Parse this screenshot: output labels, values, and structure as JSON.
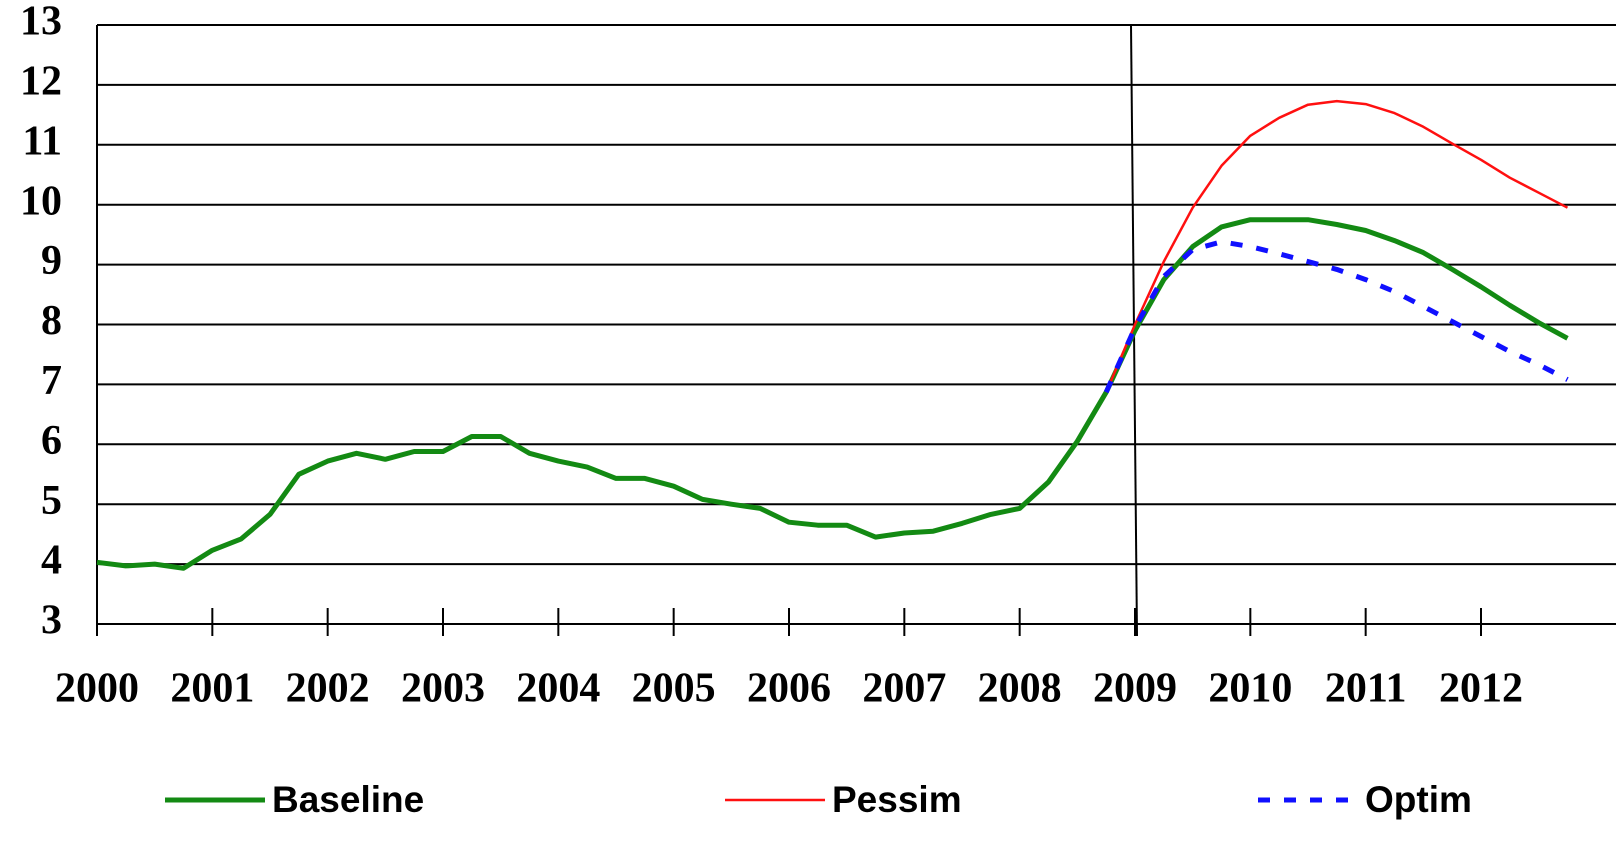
{
  "chart_data": {
    "type": "line",
    "x": [
      2000,
      2000.25,
      2000.5,
      2000.75,
      2001,
      2001.25,
      2001.5,
      2001.75,
      2002,
      2002.25,
      2002.5,
      2002.75,
      2003,
      2003.25,
      2003.5,
      2003.75,
      2004,
      2004.25,
      2004.5,
      2004.75,
      2005,
      2005.25,
      2005.5,
      2005.75,
      2006,
      2006.25,
      2006.5,
      2006.75,
      2007,
      2007.25,
      2007.5,
      2007.75,
      2008,
      2008.25,
      2008.5,
      2008.75,
      2009,
      2009.25,
      2009.5,
      2009.75,
      2010,
      2010.25,
      2010.5,
      2010.75,
      2011,
      2011.25,
      2011.5,
      2011.75,
      2012,
      2012.25,
      2012.5,
      2012.75
    ],
    "series": [
      {
        "name": "Baseline",
        "color": "#138a13",
        "width": 5,
        "dash": false,
        "values": [
          4.03,
          3.97,
          4.0,
          3.93,
          4.23,
          4.42,
          4.83,
          5.5,
          5.72,
          5.85,
          5.75,
          5.88,
          5.88,
          6.13,
          6.13,
          5.85,
          5.72,
          5.62,
          5.43,
          5.43,
          5.3,
          5.08,
          5.0,
          4.93,
          4.7,
          4.65,
          4.65,
          4.45,
          4.52,
          4.55,
          4.68,
          4.83,
          4.93,
          5.37,
          6.05,
          6.87,
          7.9,
          8.75,
          9.3,
          9.63,
          9.75,
          9.75,
          9.75,
          9.67,
          9.57,
          9.4,
          9.2,
          8.92,
          8.63,
          8.32,
          8.03,
          7.77
        ]
      },
      {
        "name": "Pessim",
        "color": "#ff1010",
        "width": 2.5,
        "dash": false,
        "values": [
          null,
          null,
          null,
          null,
          null,
          null,
          null,
          null,
          null,
          null,
          null,
          null,
          null,
          null,
          null,
          null,
          null,
          null,
          null,
          null,
          null,
          null,
          null,
          null,
          null,
          null,
          null,
          null,
          null,
          null,
          null,
          null,
          null,
          null,
          null,
          6.87,
          8.0,
          9.05,
          9.95,
          10.65,
          11.15,
          11.45,
          11.67,
          11.73,
          11.68,
          11.53,
          11.3,
          11.02,
          10.75,
          10.45,
          10.2,
          9.95
        ]
      },
      {
        "name": "Optim",
        "color": "#1010ff",
        "width": 5,
        "dash": true,
        "values": [
          null,
          null,
          null,
          null,
          null,
          null,
          null,
          null,
          null,
          null,
          null,
          null,
          null,
          null,
          null,
          null,
          null,
          null,
          null,
          null,
          null,
          null,
          null,
          null,
          null,
          null,
          null,
          null,
          null,
          null,
          null,
          null,
          null,
          null,
          null,
          6.87,
          7.95,
          8.8,
          9.25,
          9.38,
          9.3,
          9.18,
          9.05,
          8.92,
          8.75,
          8.55,
          8.3,
          8.05,
          7.8,
          7.55,
          7.33,
          7.08
        ]
      }
    ],
    "xlim": [
      2000,
      2012.75
    ],
    "xticks": [
      2000,
      2001,
      2002,
      2003,
      2004,
      2005,
      2006,
      2007,
      2008,
      2009,
      2010,
      2011,
      2012
    ],
    "ylim": [
      3,
      13
    ],
    "yticks": [
      3,
      4,
      5,
      6,
      7,
      8,
      9,
      10,
      11,
      12,
      13
    ],
    "grid": true,
    "legend": "bottom"
  }
}
